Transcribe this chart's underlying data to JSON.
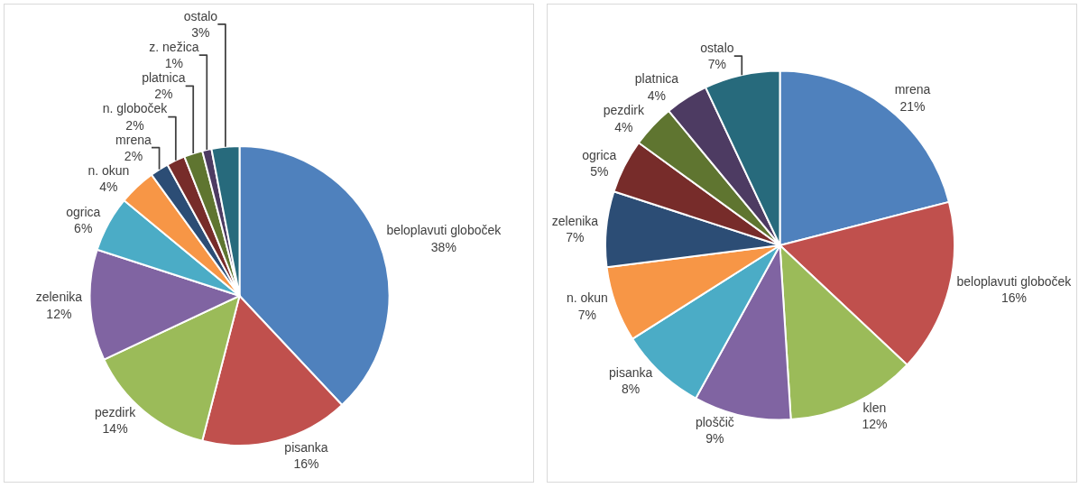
{
  "chart_data": [
    {
      "type": "pie",
      "categories": [
        "beloplavuti globoček",
        "pisanka",
        "pezdirk",
        "zelenika",
        "ogrica",
        "n. okun",
        "mrena",
        "n. globoček",
        "platnica",
        "z. nežica",
        "ostalo"
      ],
      "values": [
        38,
        16,
        14,
        12,
        6,
        4,
        2,
        2,
        2,
        1,
        3
      ],
      "value_labels": [
        "38%",
        "16%",
        "14%",
        "12%",
        "6%",
        "4%",
        "2%",
        "2%",
        "2%",
        "1%",
        "3%"
      ],
      "colors": [
        "#4f81bd",
        "#c0504d",
        "#9bbb59",
        "#8064a2",
        "#4bacc6",
        "#f79646",
        "#2c4d75",
        "#772c2a",
        "#5f7530",
        "#4d3b62",
        "#276a7c"
      ],
      "legend": false
    },
    {
      "type": "pie",
      "categories": [
        "mrena",
        "beloplavuti globoček",
        "klen",
        "ploščič",
        "pisanka",
        "n. okun",
        "zelenika",
        "ogrica",
        "pezdirk",
        "platnica",
        "ostalo"
      ],
      "values": [
        21,
        16,
        12,
        9,
        8,
        7,
        7,
        5,
        4,
        4,
        7
      ],
      "value_labels": [
        "21%",
        "16%",
        "12%",
        "9%",
        "8%",
        "7%",
        "7%",
        "5%",
        "4%",
        "4%",
        "7%"
      ],
      "colors": [
        "#4f81bd",
        "#c0504d",
        "#9bbb59",
        "#8064a2",
        "#4bacc6",
        "#f79646",
        "#2c4d75",
        "#772c2a",
        "#5f7530",
        "#4d3b62",
        "#276a7c"
      ],
      "legend": false
    }
  ]
}
